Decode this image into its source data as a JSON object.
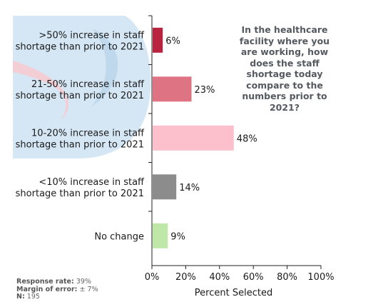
{
  "question": [
    "In the healthcare",
    "facility where you",
    "are working, how",
    "does the staff",
    "shortage today",
    "compare to the",
    "numbers prior to",
    "2021?"
  ],
  "chart_data": {
    "type": "bar",
    "orientation": "horizontal",
    "categories": [
      [
        ">50% increase in staff",
        "shortage than prior to 2021"
      ],
      [
        "21-50% increase in staff",
        "shortage than prior to 2021"
      ],
      [
        "10-20% increase in staff",
        "shortage than prior to 2021"
      ],
      [
        "<10% increase in staff",
        "shortage than prior to 2021"
      ],
      [
        "No change"
      ]
    ],
    "values": [
      6,
      23,
      48,
      14,
      9
    ],
    "value_labels": [
      "6%",
      "23%",
      "48%",
      "14%",
      "9%"
    ],
    "colors": [
      "#b8233e",
      "#de7383",
      "#fbc0cc",
      "#8c8c8c",
      "#bfe8a8"
    ],
    "xlim": [
      0,
      100
    ],
    "xticks": [
      0,
      20,
      40,
      60,
      80,
      100
    ],
    "xtick_labels": [
      "0%",
      "20%",
      "40%",
      "60%",
      "80%",
      "100%"
    ],
    "xlabel": "Percent Selected",
    "grid": false
  },
  "footnote": {
    "response_rate_label": "Response rate:",
    "response_rate_value": "39%",
    "margin_label": "Margin of error:",
    "margin_value": "± 7%",
    "n_label": "N:",
    "n_value": "195"
  },
  "colors": {
    "watermark_blue": "#cfe4f3",
    "watermark_pink": "#f3c9cf",
    "axis": "#222222"
  }
}
